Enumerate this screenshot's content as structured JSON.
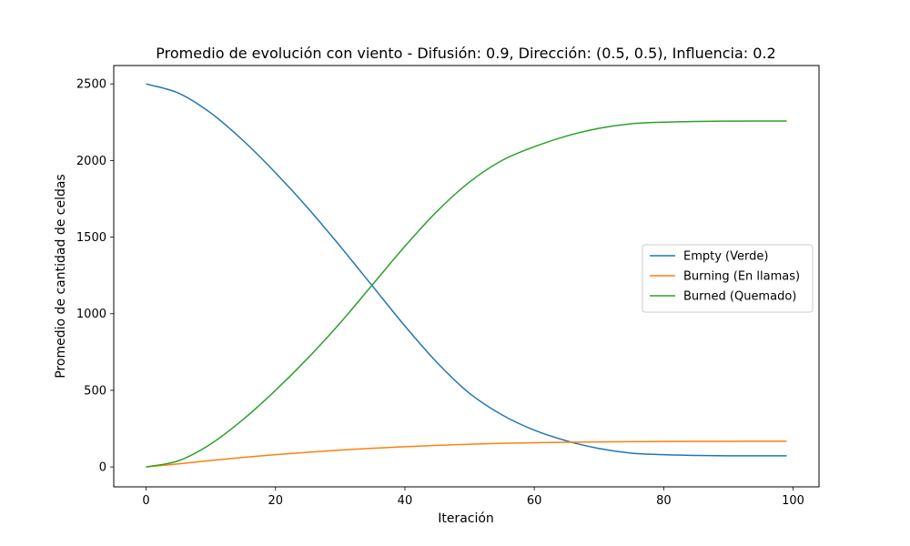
{
  "chart_data": {
    "type": "line",
    "title": "Promedio de evolución con viento - Difusión: 0.9, Dirección: (0.5, 0.5), Influencia: 0.2",
    "xlabel": "Iteración",
    "ylabel": "Promedio de cantidad de celdas",
    "xlim": [
      -5,
      104
    ],
    "ylim": [
      -130,
      2620
    ],
    "xticks": [
      0,
      20,
      40,
      60,
      80,
      100
    ],
    "yticks": [
      0,
      500,
      1000,
      1500,
      2000,
      2500
    ],
    "grid": false,
    "legend_position": "center-right",
    "x": [
      0,
      5,
      10,
      15,
      20,
      25,
      30,
      35,
      40,
      45,
      50,
      55,
      60,
      65,
      70,
      75,
      80,
      85,
      90,
      95,
      99
    ],
    "series": [
      {
        "name": "Empty (Verde)",
        "color": "#1f77b4",
        "values": [
          2500,
          2440,
          2310,
          2130,
          1920,
          1690,
          1440,
          1180,
          920,
          680,
          480,
          340,
          240,
          170,
          120,
          90,
          80,
          75,
          73,
          73,
          73
        ]
      },
      {
        "name": "Burning (En llamas)",
        "color": "#ff7f0e",
        "values": [
          0,
          20,
          42,
          62,
          80,
          96,
          110,
          122,
          132,
          141,
          148,
          154,
          158,
          161,
          163,
          165,
          166,
          167,
          167,
          168,
          168
        ]
      },
      {
        "name": "Burned (Quemado)",
        "color": "#2ca02c",
        "values": [
          0,
          40,
          150,
          310,
          500,
          710,
          940,
          1190,
          1440,
          1670,
          1860,
          2000,
          2090,
          2160,
          2210,
          2240,
          2250,
          2255,
          2257,
          2258,
          2258
        ]
      }
    ]
  }
}
